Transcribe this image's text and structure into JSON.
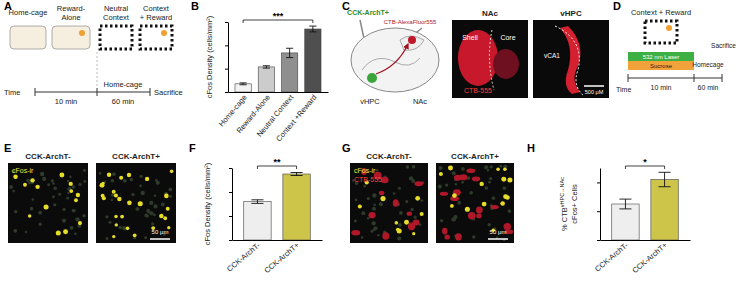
{
  "panel_labels": [
    "A",
    "B",
    "C",
    "D",
    "E",
    "F",
    "G",
    "H"
  ],
  "panel_a": {
    "stages": [
      [
        "Home-cage"
      ],
      [
        "Reward-",
        "Alone"
      ],
      [
        "Neutral",
        "Context"
      ],
      [
        "Context",
        "+ Reward"
      ]
    ],
    "time": "Time",
    "first_period": "10 min",
    "homecage": "Home-cage",
    "second_period": "60 min",
    "sacrifice": "Sacrifice"
  },
  "panel_c": {
    "virus": "CCK-ArchT+",
    "tracer": "CTB-AlexaFluor555",
    "source": "vHPC",
    "target": "NAc",
    "image_titles": [
      "NAc",
      "vHPC"
    ],
    "shell": "Shell",
    "core": "Core",
    "tracer_channel": "CTB-555",
    "subregion": "vCA1",
    "scale_bar": "500 μM"
  },
  "panel_d": {
    "box": "Context + Reward",
    "laser": "532 nm Laser",
    "sucrose": "Sucrose",
    "homecage": "Homecage",
    "sacrifice": "Sacrifice",
    "time": "Time",
    "first_period": "10 min",
    "second_period": "60 min"
  },
  "panel_e": {
    "groups": [
      "CCK-ArchT-",
      "CCK-ArchT+"
    ],
    "channel": "cFos-ir",
    "scale_bar": "50 μm"
  },
  "panel_g": {
    "groups": [
      "CCK-ArchT-",
      "CCK-ArchT+"
    ],
    "channels": [
      "cFos-ir",
      "CTB-555"
    ],
    "scale_bar": "50 μm"
  },
  "chart_data": [
    {
      "type": "bar",
      "y_label": "cFos Density (cells/mm²)",
      "categories": [
        "Home-cage",
        "Reward-Alone",
        "Neutral Context",
        "Context +Reward"
      ],
      "values": [
        70,
        215,
        335,
        540
      ],
      "errors": [
        8,
        10,
        40,
        25
      ],
      "colors": [
        "#f2f2f2",
        "#cccccc",
        "#8f8f8f",
        "#4f4f4f"
      ],
      "ylim": [
        0,
        600
      ],
      "yticks": [
        0,
        200,
        400,
        600
      ],
      "tick_labels": "x",
      "annotations": [
        {
          "text": "***",
          "between": [
            "Home-cage",
            "Context +Reward"
          ]
        }
      ]
    },
    {
      "type": "bar",
      "y_label": "cFos Density (cells/mm²)",
      "categories": [
        "CCK-ArchT-",
        "CCK-ArchT+"
      ],
      "values": [
        640,
        1100
      ],
      "errors": [
        30,
        25
      ],
      "colors": [
        "#eeeeee",
        "#cdc44a"
      ],
      "ylim": [
        0,
        1200
      ],
      "yticks": [
        0,
        400,
        800,
        1200
      ],
      "tick_labels": "x",
      "annotations": [
        {
          "text": "**",
          "between": [
            "CCK-ArchT-",
            "CCK-ArchT+"
          ]
        }
      ]
    },
    {
      "type": "bar",
      "y_label": [
        "% CTB",
        "vHPC→NAc",
        "cFos+ Cells"
      ],
      "categories": [
        "CCK-ArchT-",
        "CCK-ArchT+"
      ],
      "values": [
        12.5,
        21
      ],
      "errors": [
        1.7,
        2.5
      ],
      "colors": [
        "#eeeeee",
        "#cdc44a"
      ],
      "ylim": [
        0,
        25
      ],
      "yticks": [
        0,
        10,
        20
      ],
      "tick_labels": "x",
      "annotations": [
        {
          "text": "*",
          "between": [
            "CCK-ArchT-",
            "CCK-ArchT+"
          ]
        }
      ]
    }
  ]
}
